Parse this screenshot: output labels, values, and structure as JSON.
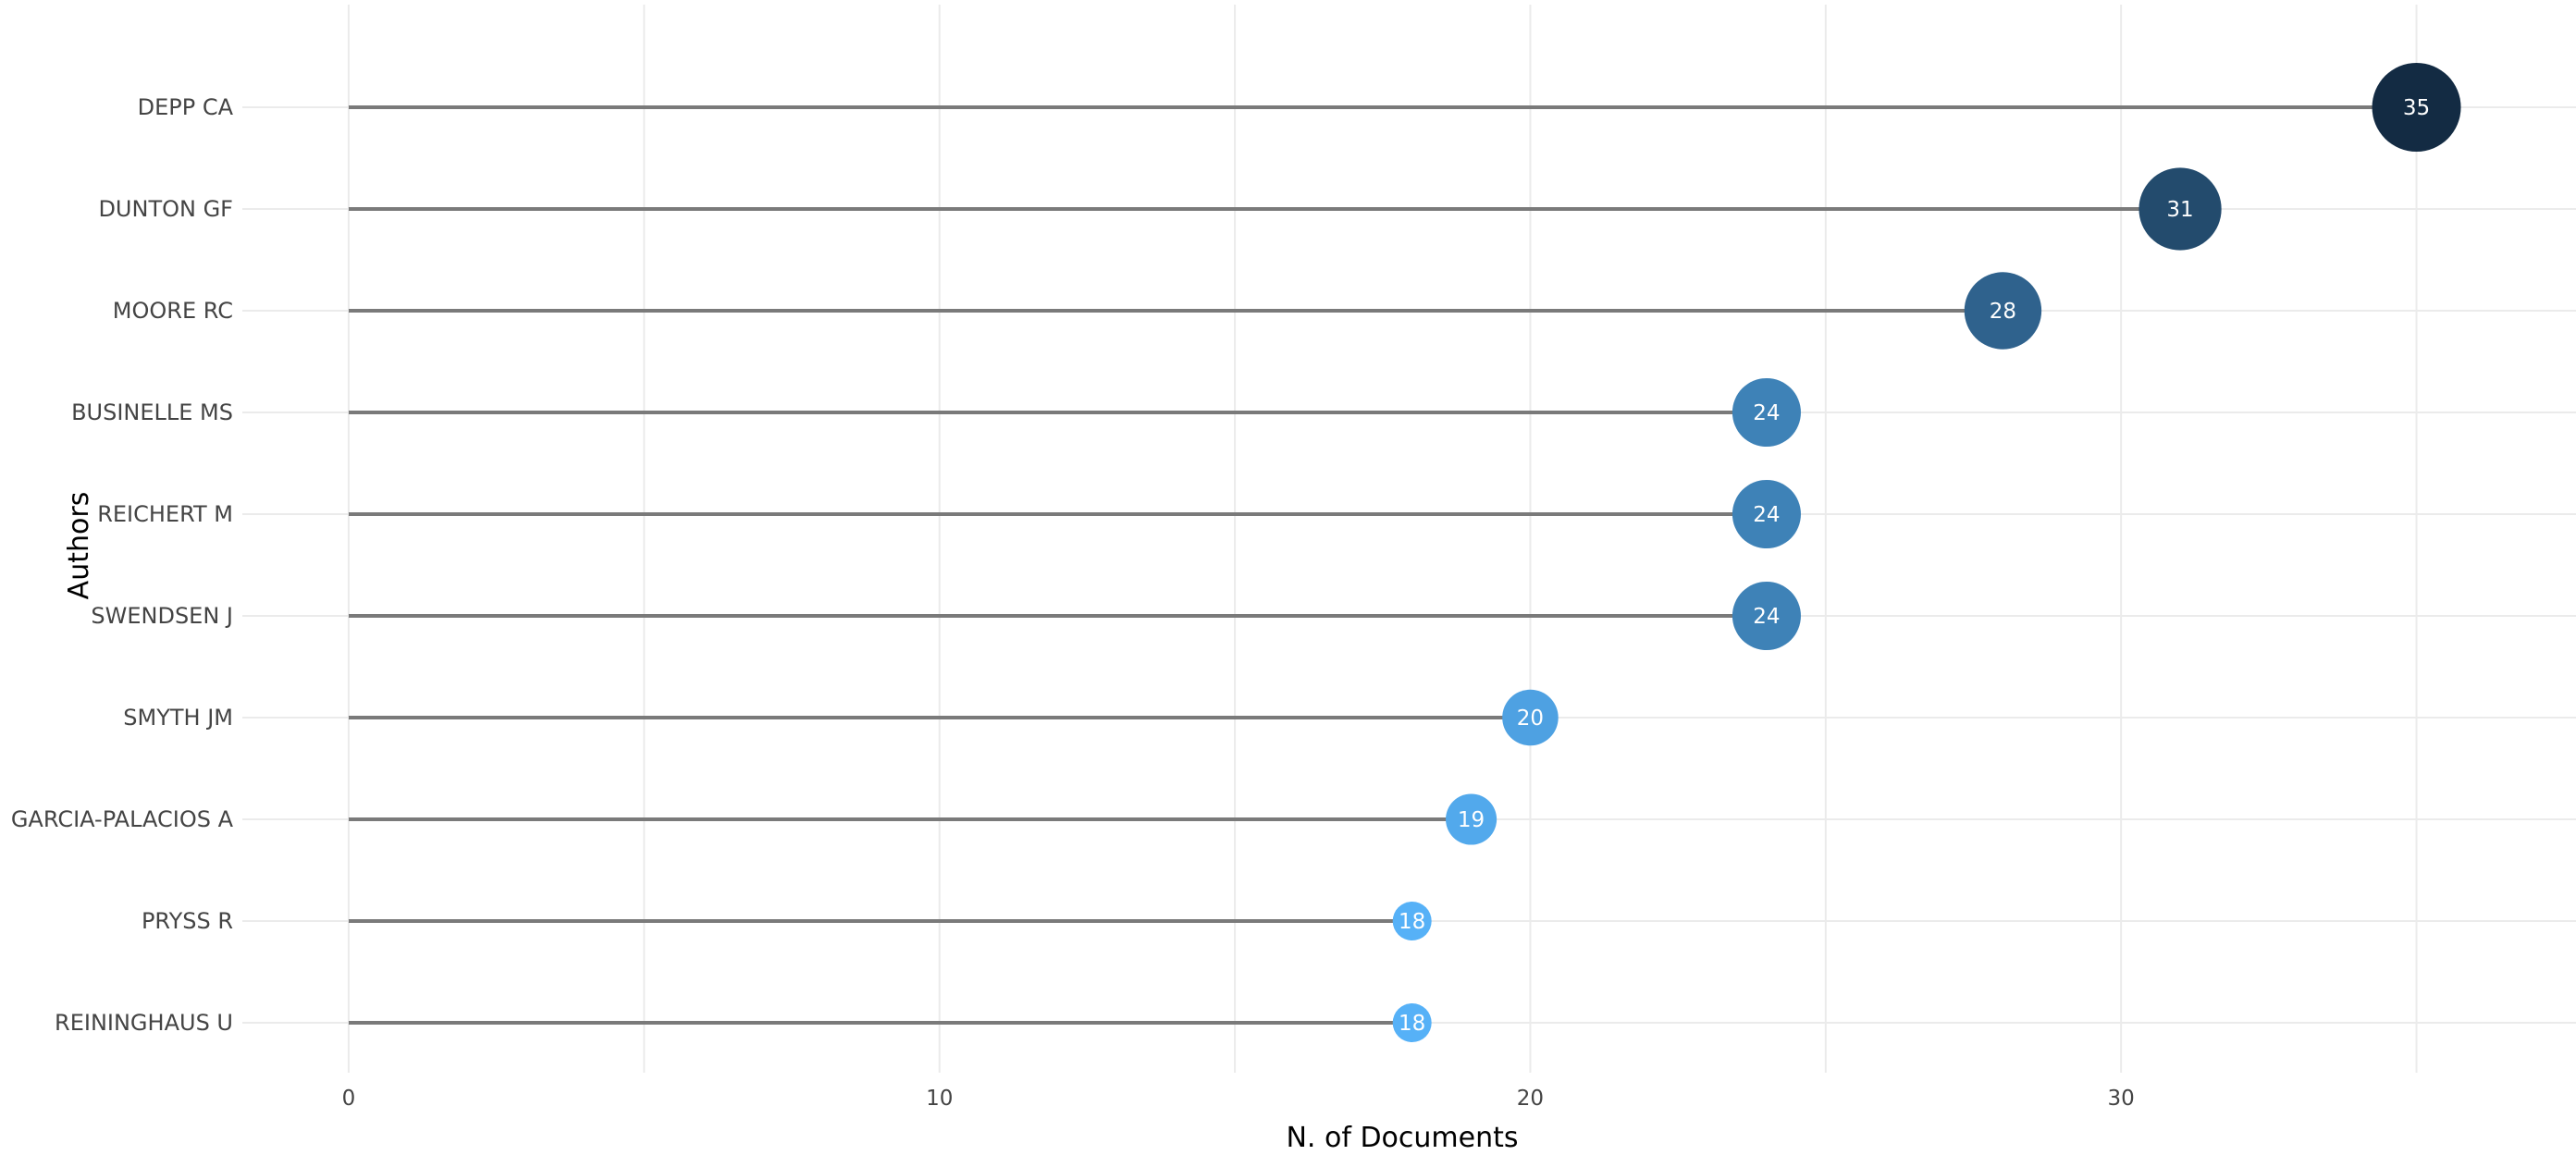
{
  "chart_data": {
    "type": "lollipop",
    "title": "",
    "xlabel": "N. of Documents",
    "ylabel": "Authors",
    "xlim": [
      -1.8,
      37.7
    ],
    "xticks": [
      0,
      10,
      20,
      30
    ],
    "grid": true,
    "legend": "none",
    "categories": [
      "DEPP CA",
      "DUNTON GF",
      "MOORE RC",
      "BUSINELLE MS",
      "REICHERT M",
      "SWENDSEN J",
      "SMYTH JM",
      "GARCIA-PALACIOS A",
      "PRYSS R",
      "REININGHAUS U"
    ],
    "values": [
      35,
      31,
      28,
      24,
      24,
      24,
      20,
      19,
      18,
      18
    ],
    "colors": {
      "stem": "#7a7a7a",
      "grid": "#ebebeb",
      "low": "#56b1f7",
      "high": "#132b43"
    }
  }
}
